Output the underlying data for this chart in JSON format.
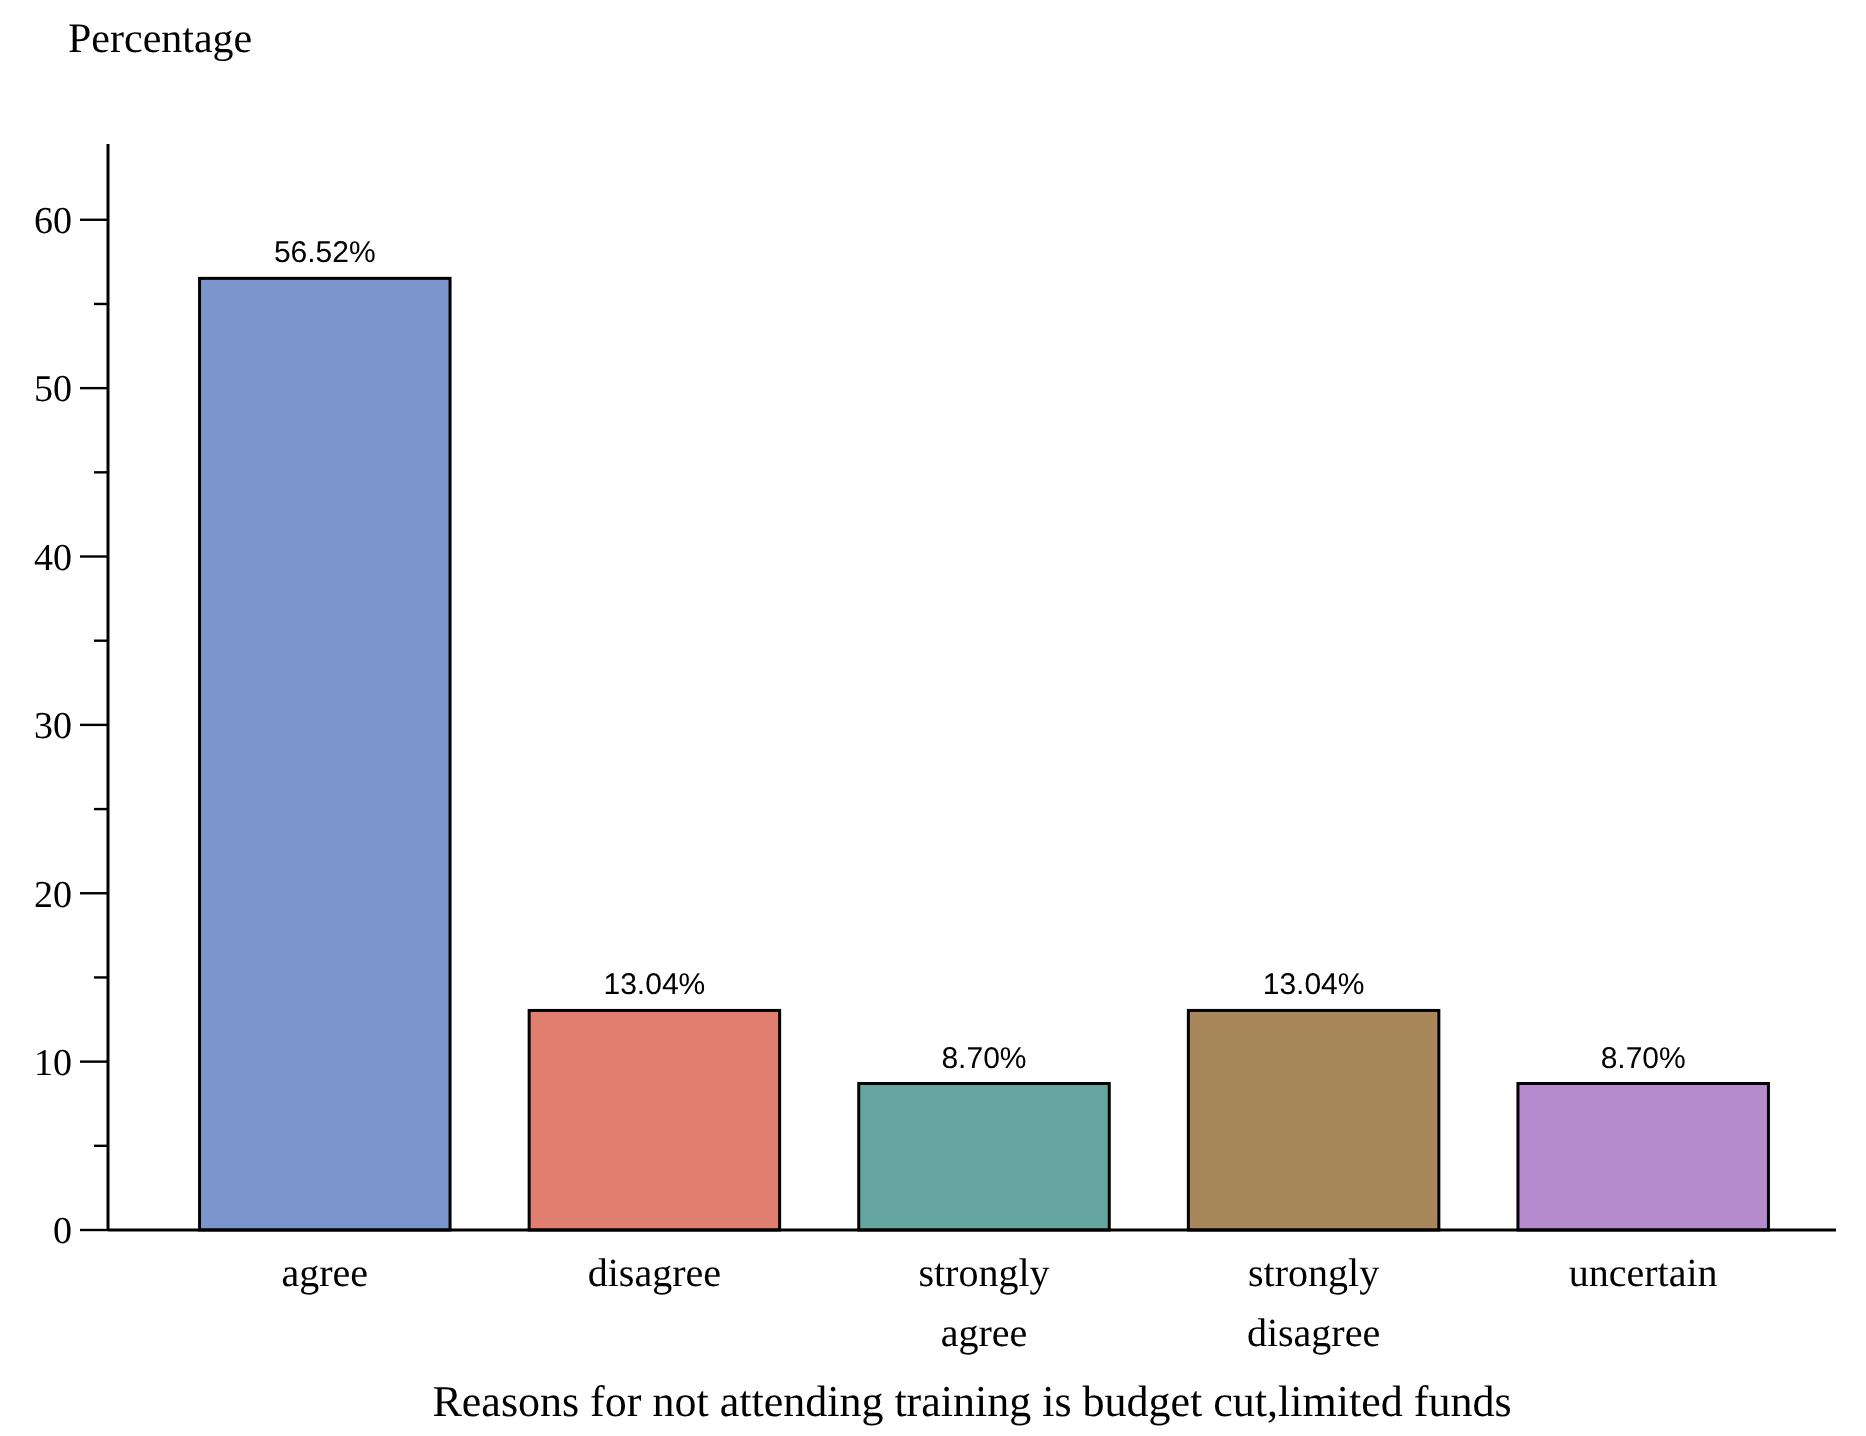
{
  "chart_data": {
    "type": "bar",
    "ylabel": "Percentage",
    "xlabel": "Reasons for not attending training is budget cut,limited funds",
    "categories": [
      "agree",
      "disagree",
      "strongly agree",
      "strongly disagree",
      "uncertain"
    ],
    "values": [
      56.52,
      13.04,
      8.7,
      13.04,
      8.7
    ],
    "colors": [
      "#7b96cc",
      "#e07f6f",
      "#66a6a0",
      "#a8875b",
      "#b58bcd"
    ],
    "value_labels": [
      "56.52%",
      "13.04%",
      "8.70%",
      "13.04%",
      "8.70%"
    ],
    "ylim": [
      0,
      64.5
    ],
    "yticks": [
      0,
      {
        "value": 5,
        "label": null
      },
      10,
      {
        "value": 15,
        "label": null
      },
      20,
      {
        "value": 25,
        "label": null
      },
      30,
      {
        "value": 35,
        "label": null
      },
      40,
      {
        "value": 45,
        "label": null
      },
      50,
      {
        "value": 55,
        "label": null
      },
      60
    ]
  }
}
